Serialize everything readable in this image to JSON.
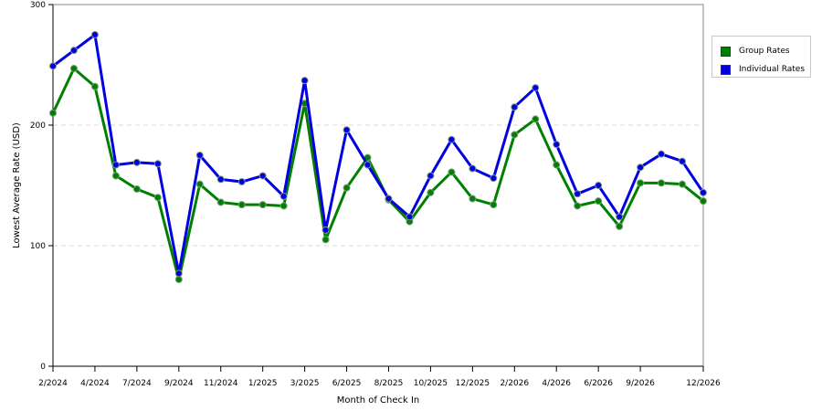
{
  "chart_data": {
    "type": "line",
    "xlabel": "Month of Check In",
    "ylabel": "Lowest Average Rate (USD)",
    "ylim": [
      0,
      300
    ],
    "yticks": [
      0,
      100,
      200,
      300
    ],
    "grid": "horizontal dashed",
    "legend_position": "top-right",
    "x_tick_labels": [
      "2/2024",
      "4/2024",
      "7/2024",
      "9/2024",
      "11/2024",
      "1/2025",
      "3/2025",
      "6/2025",
      "8/2025",
      "10/2025",
      "12/2025",
      "2/2026",
      "4/2026",
      "6/2026",
      "9/2026",
      "12/2026"
    ],
    "x_tick_indices": [
      0,
      2,
      4,
      6,
      8,
      10,
      12,
      14,
      16,
      18,
      20,
      22,
      24,
      26,
      28,
      31
    ],
    "point_count": 32,
    "series": [
      {
        "name": "Group Rates",
        "color": "#008000",
        "values": [
          210,
          247,
          232,
          158,
          147,
          140,
          72,
          151,
          136,
          134,
          134,
          133,
          218,
          105,
          148,
          173,
          138,
          120,
          144,
          161,
          139,
          134,
          192,
          205,
          167,
          133,
          137,
          116,
          152,
          152,
          151,
          137
        ]
      },
      {
        "name": "Individual Rates",
        "color": "#0000e0",
        "values": [
          249,
          262,
          275,
          167,
          169,
          168,
          77,
          175,
          155,
          153,
          158,
          141,
          237,
          113,
          196,
          167,
          139,
          124,
          158,
          188,
          164,
          156,
          215,
          231,
          184,
          143,
          150,
          124,
          165,
          176,
          170,
          144
        ]
      }
    ]
  }
}
